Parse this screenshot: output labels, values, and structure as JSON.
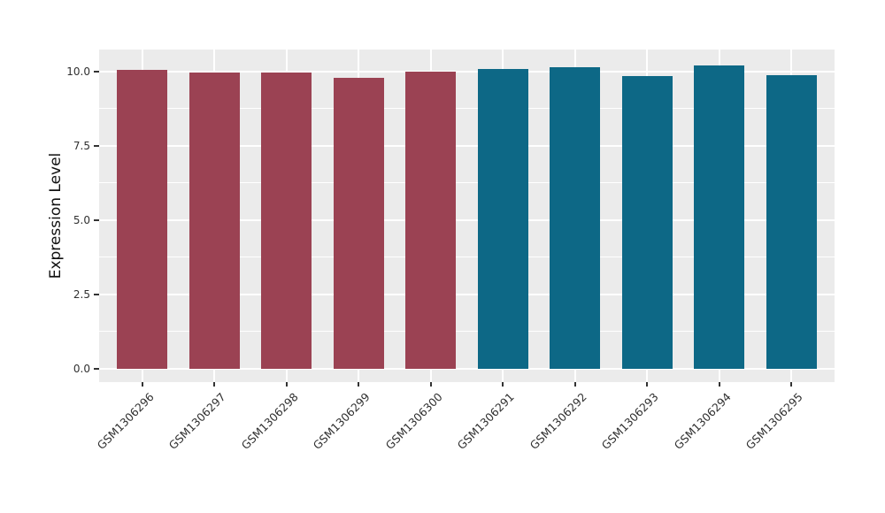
{
  "chart_data": {
    "type": "bar",
    "title": "",
    "xlabel": "",
    "ylabel": "Expression Level",
    "categories": [
      "GSM1306296",
      "GSM1306297",
      "GSM1306298",
      "GSM1306299",
      "GSM1306300",
      "GSM1306291",
      "GSM1306292",
      "GSM1306293",
      "GSM1306294",
      "GSM1306295"
    ],
    "values": [
      10.05,
      9.97,
      9.97,
      9.79,
      9.99,
      10.1,
      10.14,
      9.84,
      10.21,
      9.88
    ],
    "bar_colors": [
      "#9B4253",
      "#9B4253",
      "#9B4253",
      "#9B4253",
      "#9B4253",
      "#0D6886",
      "#0D6886",
      "#0D6886",
      "#0D6886",
      "#0D6886"
    ],
    "group_colors": {
      "left_group": "#9B4253",
      "right_group": "#0D6886"
    },
    "ytick_labels": [
      "0.0",
      "2.5",
      "5.0",
      "7.5",
      "10.0"
    ],
    "ytick_values": [
      0,
      2.5,
      5,
      7.5,
      10
    ],
    "minor_ytick_values": [
      1.25,
      3.75,
      6.25,
      8.75
    ],
    "ylim": [
      -0.45,
      10.74
    ],
    "x_label_angle": -45,
    "bar_width_fraction": 0.7,
    "grid": true,
    "legend_position": "none",
    "panel_bg": "#EBEBEB",
    "grid_color": "#FFFFFF",
    "axis_text_color": "#303030",
    "tick_mark_color": "#333333"
  }
}
